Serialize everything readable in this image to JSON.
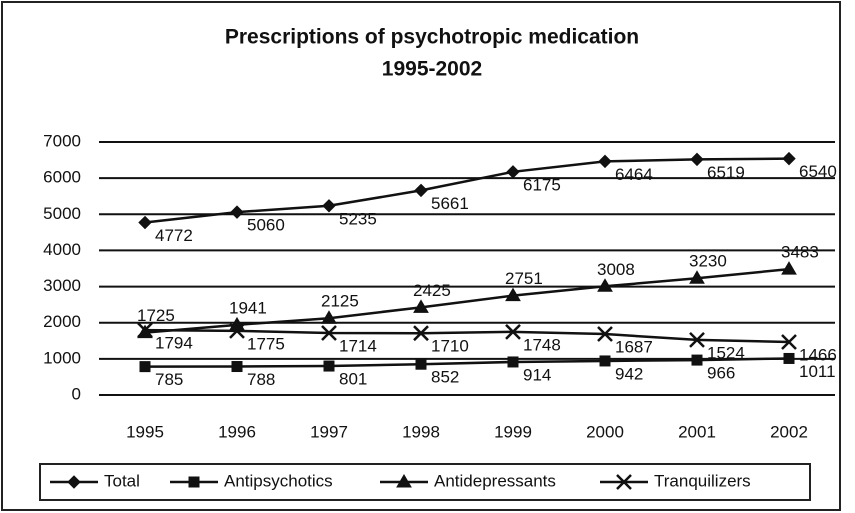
{
  "chart_data": {
    "type": "line",
    "title": "Prescriptions of psychotropic medication",
    "subtitle": "1995-2002",
    "categories": [
      "1995",
      "1996",
      "1997",
      "1998",
      "1999",
      "2000",
      "2001",
      "2002"
    ],
    "series": [
      {
        "name": "Total",
        "color": "#111111",
        "marker": "diamond",
        "values": [
          4772,
          5060,
          5235,
          5661,
          6175,
          6464,
          6519,
          6540
        ]
      },
      {
        "name": "Antipsychotics",
        "color": "#111111",
        "marker": "square",
        "values": [
          785,
          788,
          801,
          852,
          914,
          942,
          966,
          1011
        ]
      },
      {
        "name": "Antidepressants",
        "color": "#111111",
        "marker": "triangle",
        "values": [
          1725,
          1941,
          2125,
          2425,
          2751,
          3008,
          3230,
          3483
        ]
      },
      {
        "name": "Tranquilizers",
        "color": "#111111",
        "marker": "x",
        "values": [
          1794,
          1775,
          1714,
          1710,
          1748,
          1687,
          1524,
          1466
        ]
      }
    ],
    "ylim": [
      0,
      7000
    ],
    "yticks": [
      0,
      1000,
      2000,
      3000,
      4000,
      5000,
      6000,
      7000
    ],
    "grid": true,
    "legend": "bottom"
  }
}
